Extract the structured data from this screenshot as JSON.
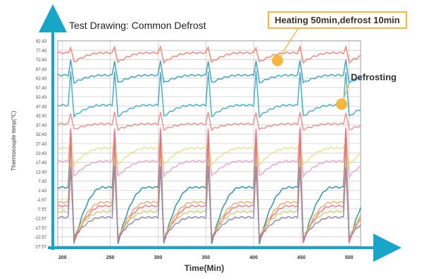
{
  "chart_data": {
    "type": "line",
    "title": "Test Drawing: Common Defrost",
    "xlabel": "Time(Min)",
    "ylabel": "Thermocouple temp(℃)",
    "xlim": [
      195,
      512
    ],
    "ylim": [
      -27.57,
      82.43
    ],
    "x_ticks": [
      "200",
      "250",
      "300",
      "350",
      "400",
      "450",
      "500"
    ],
    "y_ticks": [
      "82.43",
      "77.43",
      "72.43",
      "67.43",
      "62.43",
      "57.43",
      "52.43",
      "47.43",
      "42.43",
      "37.43",
      "32.43",
      "27.43",
      "22.43",
      "17.43",
      "12.43",
      "7.43",
      "2.43",
      "-2.57",
      "-7.57",
      "-12.57",
      "-17.57",
      "-22.57",
      "-27.57"
    ],
    "grid": true,
    "defrost_times": [
      206,
      252,
      300,
      350,
      400,
      446,
      494
    ],
    "annotations": [
      "Heating 50min,defrost 10min",
      "Defrosting"
    ],
    "series": [
      {
        "color": "#ee7a6c",
        "normal": 76,
        "spike": 79,
        "dip": 71
      },
      {
        "color": "#2f9bb8",
        "normal": 64,
        "spike": 72,
        "dip": 60
      },
      {
        "color": "#3aa6c4",
        "normal": 48,
        "spike": 66,
        "dip": 42
      },
      {
        "color": "#e98883",
        "normal": 38,
        "spike": 44,
        "dip": 35
      },
      {
        "color": "#e9a1c4",
        "normal": 18,
        "spike": 36,
        "dip": 10
      },
      {
        "color": "#e5e088",
        "normal": 25,
        "spike": 30,
        "dip": 16
      },
      {
        "color": "#168c9b",
        "normal": 4,
        "spike": 30,
        "dip": -26
      },
      {
        "color": "#f0a35c",
        "normal": -4,
        "spike": 25,
        "dip": -24
      },
      {
        "color": "#ef6d73",
        "normal": -6,
        "spike": 35,
        "dip": -25
      },
      {
        "color": "#c9c86e",
        "normal": -9,
        "spike": 20,
        "dip": -22
      },
      {
        "color": "#8b7fb2",
        "normal": -12,
        "spike": 15,
        "dip": -23
      }
    ]
  }
}
